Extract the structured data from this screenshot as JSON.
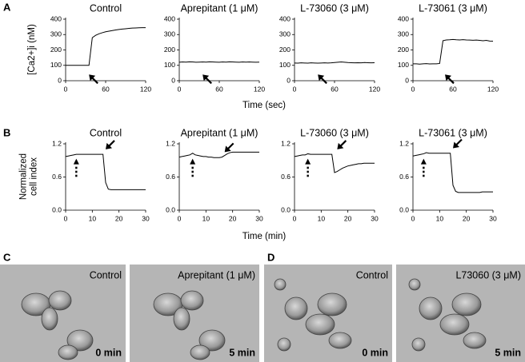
{
  "chart_data": [
    {
      "type": "line",
      "title": "Control",
      "x": [
        0,
        5,
        10,
        15,
        20,
        25,
        30,
        35,
        40,
        45,
        50,
        55,
        60,
        65,
        70,
        75,
        80,
        85,
        90,
        95,
        100,
        105,
        110,
        115,
        120
      ],
      "series": [
        {
          "color": "#000000",
          "values": [
            100,
            100,
            100,
            100,
            100,
            100,
            100,
            100,
            280,
            295,
            305,
            312,
            318,
            322,
            326,
            330,
            333,
            336,
            338,
            340,
            342,
            343,
            344,
            345,
            345
          ]
        }
      ],
      "xlim": [
        0,
        120
      ],
      "ylim": [
        0,
        400
      ],
      "xticks": [
        0,
        60,
        120
      ],
      "yticks": [
        0,
        100,
        200,
        300,
        400
      ],
      "markers": [
        {
          "x": 35,
          "y": 40,
          "kind": "solid",
          "direction": "up-left"
        }
      ]
    },
    {
      "type": "line",
      "title": "Aprepitant (1 μM)",
      "x": [
        0,
        5,
        10,
        15,
        20,
        25,
        30,
        35,
        40,
        45,
        50,
        55,
        60,
        65,
        70,
        75,
        80,
        85,
        90,
        95,
        100,
        105,
        110,
        115,
        120
      ],
      "series": [
        {
          "color": "#000000",
          "values": [
            120,
            122,
            121,
            123,
            122,
            120,
            121,
            122,
            121,
            123,
            122,
            121,
            120,
            122,
            121,
            123,
            122,
            121,
            120,
            122,
            121,
            122,
            121,
            120,
            121
          ]
        }
      ],
      "xlim": [
        0,
        120
      ],
      "ylim": [
        0,
        400
      ],
      "xticks": [
        0,
        60,
        120
      ],
      "yticks": [
        0,
        100,
        200,
        300,
        400
      ],
      "markers": [
        {
          "x": 35,
          "y": 40,
          "kind": "solid",
          "direction": "up-left"
        }
      ]
    },
    {
      "type": "line",
      "title": "L-73060 (3 μM)",
      "x": [
        0,
        5,
        10,
        15,
        20,
        25,
        30,
        35,
        40,
        45,
        50,
        55,
        60,
        65,
        70,
        75,
        80,
        85,
        90,
        95,
        100,
        105,
        110,
        115,
        120
      ],
      "series": [
        {
          "color": "#000000",
          "values": [
            115,
            114,
            116,
            115,
            114,
            116,
            115,
            114,
            115,
            116,
            115,
            116,
            118,
            120,
            122,
            120,
            118,
            117,
            116,
            117,
            116,
            118,
            117,
            116,
            117
          ]
        }
      ],
      "xlim": [
        0,
        120
      ],
      "ylim": [
        0,
        400
      ],
      "xticks": [
        0,
        60,
        120
      ],
      "yticks": [
        0,
        100,
        200,
        300,
        400
      ],
      "markers": [
        {
          "x": 35,
          "y": 40,
          "kind": "solid",
          "direction": "up-left"
        }
      ]
    },
    {
      "type": "line",
      "title": "L-73061 (3 μM)",
      "x": [
        0,
        5,
        10,
        15,
        20,
        25,
        30,
        35,
        40,
        45,
        50,
        55,
        60,
        65,
        70,
        75,
        80,
        85,
        90,
        95,
        100,
        105,
        110,
        115,
        120
      ],
      "series": [
        {
          "color": "#000000",
          "values": [
            110,
            110,
            108,
            110,
            111,
            109,
            110,
            110,
            112,
            260,
            265,
            266,
            268,
            266,
            265,
            267,
            265,
            264,
            263,
            264,
            262,
            260,
            262,
            258,
            257
          ]
        }
      ],
      "xlim": [
        0,
        120
      ],
      "ylim": [
        0,
        400
      ],
      "xticks": [
        0,
        60,
        120
      ],
      "yticks": [
        0,
        100,
        200,
        300,
        400
      ],
      "markers": [
        {
          "x": 48,
          "y": 40,
          "kind": "solid",
          "direction": "up-left"
        }
      ]
    },
    {
      "type": "line",
      "title": "Control",
      "x": [
        0,
        1,
        2,
        3,
        4,
        5,
        6,
        7,
        8,
        9,
        10,
        11,
        12,
        13,
        14,
        15,
        16,
        17,
        18,
        19,
        20,
        21,
        22,
        23,
        24,
        25,
        26,
        27,
        28,
        29,
        30
      ],
      "series": [
        {
          "color": "#000000",
          "values": [
            0.97,
            0.98,
            0.99,
            1.0,
            1.01,
            1.01,
            1.01,
            1.01,
            1.01,
            1.01,
            1.01,
            1.01,
            1.01,
            1.01,
            1.01,
            0.5,
            0.38,
            0.37,
            0.37,
            0.37,
            0.37,
            0.37,
            0.37,
            0.37,
            0.37,
            0.37,
            0.37,
            0.37,
            0.37,
            0.37,
            0.37
          ]
        }
      ],
      "xlim": [
        0,
        30
      ],
      "ylim": [
        0,
        1.2
      ],
      "xticks": [
        0,
        10,
        20,
        30
      ],
      "yticks": [
        {
          "value": 0,
          "label": "0.0"
        },
        0.6,
        1.2
      ],
      "markers": [
        {
          "x": 4,
          "y": 0.93,
          "kind": "dashed",
          "direction": "up"
        },
        {
          "x": 15,
          "y": 1.1,
          "kind": "solid",
          "direction": "down-left"
        }
      ]
    },
    {
      "type": "line",
      "title": "Aprepitant (1 μM)",
      "x": [
        0,
        1,
        2,
        3,
        4,
        5,
        6,
        7,
        8,
        9,
        10,
        11,
        12,
        13,
        14,
        15,
        16,
        17,
        18,
        19,
        20,
        21,
        22,
        23,
        24,
        25,
        26,
        27,
        28,
        29,
        30
      ],
      "series": [
        {
          "color": "#000000",
          "values": [
            0.96,
            0.97,
            0.98,
            0.99,
            1.0,
            1.03,
            1.0,
            0.99,
            0.98,
            0.97,
            0.97,
            0.96,
            0.96,
            0.95,
            0.95,
            0.95,
            0.96,
            0.99,
            1.02,
            1.04,
            1.05,
            1.05,
            1.05,
            1.05,
            1.05,
            1.05,
            1.05,
            1.05,
            1.05,
            1.05,
            1.05
          ]
        }
      ],
      "xlim": [
        0,
        30
      ],
      "ylim": [
        0,
        1.2
      ],
      "xticks": [
        0,
        10,
        20,
        30
      ],
      "yticks": [
        {
          "value": 0,
          "label": "0.0"
        },
        0.6,
        1.2
      ],
      "markers": [
        {
          "x": 5,
          "y": 0.93,
          "kind": "dashed",
          "direction": "up"
        },
        {
          "x": 17,
          "y": 1.05,
          "kind": "solid",
          "direction": "down-left"
        }
      ]
    },
    {
      "type": "line",
      "title": "L-73060 (3 μM)",
      "x": [
        0,
        1,
        2,
        3,
        4,
        5,
        6,
        7,
        8,
        9,
        10,
        11,
        12,
        13,
        14,
        15,
        16,
        17,
        18,
        19,
        20,
        21,
        22,
        23,
        24,
        25,
        26,
        27,
        28,
        29,
        30
      ],
      "series": [
        {
          "color": "#000000",
          "values": [
            0.97,
            0.98,
            0.99,
            1.0,
            1.0,
            1.02,
            1.01,
            1.01,
            1.01,
            1.01,
            1.01,
            1.01,
            1.01,
            1.01,
            1.01,
            0.68,
            0.7,
            0.73,
            0.76,
            0.78,
            0.8,
            0.81,
            0.82,
            0.83,
            0.84,
            0.84,
            0.85,
            0.85,
            0.85,
            0.85,
            0.85
          ]
        }
      ],
      "xlim": [
        0,
        30
      ],
      "ylim": [
        0,
        1.2
      ],
      "xticks": [
        0,
        10,
        20,
        30
      ],
      "yticks": [
        {
          "value": 0,
          "label": "0.0"
        },
        0.6,
        1.2
      ],
      "markers": [
        {
          "x": 5,
          "y": 0.93,
          "kind": "dashed",
          "direction": "up"
        },
        {
          "x": 16,
          "y": 1.1,
          "kind": "solid",
          "direction": "down-left"
        }
      ]
    },
    {
      "type": "line",
      "title": "L-73061 (3 μM)",
      "x": [
        0,
        1,
        2,
        3,
        4,
        5,
        6,
        7,
        8,
        9,
        10,
        11,
        12,
        13,
        14,
        15,
        16,
        17,
        18,
        19,
        20,
        21,
        22,
        23,
        24,
        25,
        26,
        27,
        28,
        29,
        30
      ],
      "series": [
        {
          "color": "#000000",
          "values": [
            0.98,
            0.99,
            1.0,
            1.01,
            1.02,
            1.04,
            1.03,
            1.03,
            1.03,
            1.03,
            1.03,
            1.03,
            1.03,
            1.03,
            1.03,
            0.45,
            0.34,
            0.32,
            0.32,
            0.32,
            0.32,
            0.32,
            0.32,
            0.32,
            0.32,
            0.32,
            0.33,
            0.33,
            0.33,
            0.33,
            0.33
          ]
        }
      ],
      "xlim": [
        0,
        30
      ],
      "ylim": [
        0,
        1.2
      ],
      "xticks": [
        0,
        10,
        20,
        30
      ],
      "yticks": [
        {
          "value": 0,
          "label": "0.0"
        },
        0.6,
        1.2
      ],
      "markers": [
        {
          "x": 4,
          "y": 0.93,
          "kind": "dashed",
          "direction": "up"
        },
        {
          "x": 15,
          "y": 1.12,
          "kind": "solid",
          "direction": "down-left"
        }
      ]
    }
  ],
  "row_labels": [
    {
      "panel": "A",
      "xlabel": "Time (sec)",
      "ylabel": [
        "[Ca2+]i (nM)"
      ]
    },
    {
      "panel": "B",
      "xlabel": "Time (min)",
      "ylabel": [
        "Normalized",
        "cell index"
      ]
    }
  ],
  "micrographs": [
    {
      "panel": "C",
      "images": [
        {
          "label": "Control",
          "time": "0 min"
        },
        {
          "label": "Aprepitant (1 μM)",
          "time": "5 min"
        }
      ]
    },
    {
      "panel": "D",
      "images": [
        {
          "label": "Control",
          "time": "0 min"
        },
        {
          "label": "L73060 (3 μM)",
          "time": "5 min"
        }
      ]
    }
  ]
}
